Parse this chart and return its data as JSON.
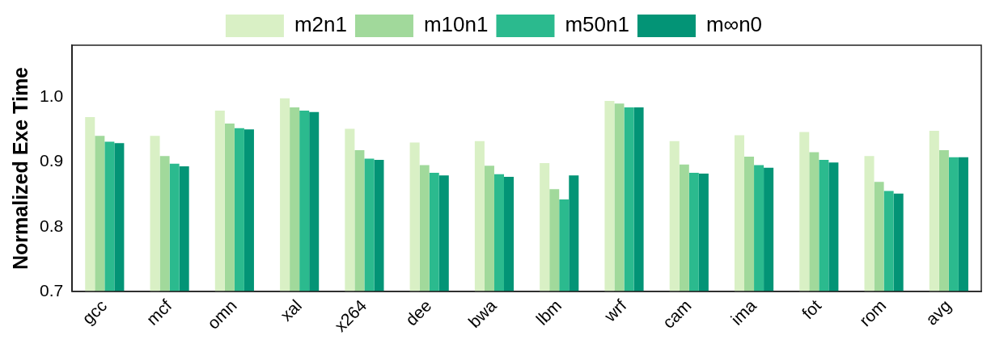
{
  "chart_data": {
    "type": "bar",
    "ylabel": "Normalized Exe Time",
    "categories": [
      "gcc",
      "mcf",
      "omn",
      "xal",
      "x264",
      "dee",
      "bwa",
      "lbm",
      "wrf",
      "cam",
      "ima",
      "fot",
      "rom",
      "avg"
    ],
    "series": [
      {
        "name": "m2n1",
        "color": "#d9f0c5",
        "values": [
          0.969,
          0.94,
          0.979,
          0.998,
          0.951,
          0.93,
          0.932,
          0.898,
          0.994,
          0.932,
          0.941,
          0.946,
          0.909,
          0.948
        ]
      },
      {
        "name": "m10n1",
        "color": "#a1d99b",
        "values": [
          0.94,
          0.909,
          0.959,
          0.984,
          0.918,
          0.895,
          0.894,
          0.858,
          0.99,
          0.896,
          0.908,
          0.915,
          0.869,
          0.918
        ]
      },
      {
        "name": "m50n1",
        "color": "#2bba8e",
        "values": [
          0.931,
          0.897,
          0.952,
          0.979,
          0.905,
          0.883,
          0.881,
          0.842,
          0.984,
          0.883,
          0.895,
          0.903,
          0.855,
          0.907
        ]
      },
      {
        "name": "m∞n0",
        "color": "#039476",
        "values": [
          0.929,
          0.893,
          0.95,
          0.977,
          0.903,
          0.879,
          0.877,
          0.879,
          0.984,
          0.882,
          0.891,
          0.899,
          0.851,
          0.907
        ]
      }
    ],
    "ylim": [
      0.7,
      1.08
    ],
    "yticks": [
      0.7,
      0.8,
      0.9,
      {
        "value": 1,
        "label": "1.0"
      }
    ],
    "grid": false,
    "legend": "top"
  }
}
